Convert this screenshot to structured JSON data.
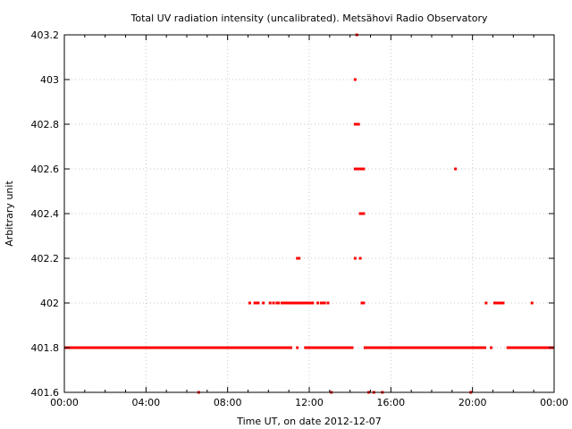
{
  "chart_data": {
    "type": "scatter",
    "title": "Total UV radiation intensity (uncalibrated). Metsähovi Radio Observatory",
    "xlabel": "Time UT, on date 2012-12-07",
    "ylabel": "Arbitrary unit",
    "xlim": [
      "00:00",
      "24:00"
    ],
    "ylim": [
      401.6,
      403.2
    ],
    "x_ticks": [
      "00:00",
      "04:00",
      "08:00",
      "12:00",
      "16:00",
      "20:00",
      "00:00"
    ],
    "y_ticks": [
      "401.6",
      "401.8",
      "402",
      "402.2",
      "402.4",
      "402.6",
      "402.8",
      "403",
      "403.2"
    ],
    "grid": true,
    "point_color": "#ff0000",
    "series": [
      {
        "segments_401_8": [
          [
            "00:00",
            "11:10"
          ],
          [
            "11:45",
            "14:10"
          ],
          [
            "14:40",
            "20:40"
          ],
          [
            "21:40",
            "24:00"
          ]
        ],
        "points": [
          [
            "11:25",
            401.8
          ],
          [
            "20:55",
            401.8
          ],
          [
            "09:05",
            402.0
          ],
          [
            "09:20",
            402.0
          ],
          [
            "09:25",
            402.0
          ],
          [
            "09:30",
            402.0
          ],
          [
            "09:45",
            402.0
          ],
          [
            "10:05",
            402.0
          ],
          [
            "10:15",
            402.0
          ],
          [
            "10:25",
            402.0
          ],
          [
            "10:30",
            402.0
          ],
          [
            "10:40",
            402.0
          ],
          [
            "10:45",
            402.0
          ],
          [
            "10:50",
            402.0
          ],
          [
            "10:55",
            402.0
          ],
          [
            "11:00",
            402.0
          ],
          [
            "11:05",
            402.0
          ],
          [
            "11:10",
            402.0
          ],
          [
            "11:15",
            402.0
          ],
          [
            "11:20",
            402.0
          ],
          [
            "11:25",
            402.0
          ],
          [
            "11:30",
            402.0
          ],
          [
            "11:35",
            402.0
          ],
          [
            "11:40",
            402.0
          ],
          [
            "11:45",
            402.0
          ],
          [
            "11:50",
            402.0
          ],
          [
            "11:55",
            402.0
          ],
          [
            "12:00",
            402.0
          ],
          [
            "12:05",
            402.0
          ],
          [
            "12:10",
            402.0
          ],
          [
            "12:25",
            402.0
          ],
          [
            "12:35",
            402.0
          ],
          [
            "12:40",
            402.0
          ],
          [
            "12:45",
            402.0
          ],
          [
            "12:55",
            402.0
          ],
          [
            "14:35",
            402.0
          ],
          [
            "14:40",
            402.0
          ],
          [
            "20:40",
            402.0
          ],
          [
            "21:05",
            402.0
          ],
          [
            "21:10",
            402.0
          ],
          [
            "21:15",
            402.0
          ],
          [
            "21:20",
            402.0
          ],
          [
            "21:25",
            402.0
          ],
          [
            "21:30",
            402.0
          ],
          [
            "22:55",
            402.0
          ],
          [
            "11:25",
            402.2
          ],
          [
            "11:30",
            402.2
          ],
          [
            "14:15",
            402.2
          ],
          [
            "14:30",
            402.2
          ],
          [
            "14:30",
            402.4
          ],
          [
            "14:35",
            402.4
          ],
          [
            "14:40",
            402.4
          ],
          [
            "14:15",
            402.6
          ],
          [
            "14:20",
            402.6
          ],
          [
            "14:25",
            402.6
          ],
          [
            "14:30",
            402.6
          ],
          [
            "14:35",
            402.6
          ],
          [
            "14:40",
            402.6
          ],
          [
            "19:10",
            402.6
          ],
          [
            "14:15",
            402.8
          ],
          [
            "14:20",
            402.8
          ],
          [
            "14:25",
            402.8
          ],
          [
            "14:15",
            403.0
          ],
          [
            "14:20",
            403.2
          ],
          [
            "06:35",
            401.6
          ],
          [
            "13:05",
            401.6
          ],
          [
            "14:55",
            401.6
          ],
          [
            "15:10",
            401.6
          ],
          [
            "15:35",
            401.6
          ],
          [
            "19:55",
            401.6
          ]
        ]
      }
    ]
  }
}
